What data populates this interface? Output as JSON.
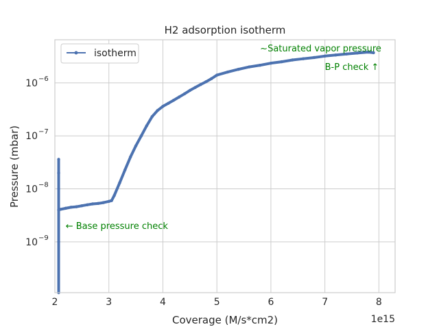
{
  "chart_data": {
    "type": "line",
    "title": "H2 adsorption isotherm",
    "xlabel": "Coverage (M/s*cm2)",
    "ylabel": "Pressure (mbar)",
    "x_offset_label": "1e15",
    "x_scale_factor": 1000000000000000.0,
    "xlim": [
      2000000000000000.0,
      8300000000000000.0
    ],
    "ylim": [
      1.1e-10,
      6.5e-06
    ],
    "yscale": "log",
    "grid": true,
    "legend_position": "upper left",
    "x_ticks": [
      {
        "value": 2000000000000000.0,
        "label": "2"
      },
      {
        "value": 3000000000000000.0,
        "label": "3"
      },
      {
        "value": 4000000000000000.0,
        "label": "4"
      },
      {
        "value": 5000000000000000.0,
        "label": "5"
      },
      {
        "value": 6000000000000000.0,
        "label": "6"
      },
      {
        "value": 7000000000000000.0,
        "label": "7"
      },
      {
        "value": 8000000000000000.0,
        "label": "8"
      }
    ],
    "y_ticks": [
      {
        "value": 1e-09,
        "base": "10",
        "exp": "−9"
      },
      {
        "value": 1e-08,
        "base": "10",
        "exp": "−8"
      },
      {
        "value": 1e-07,
        "base": "10",
        "exp": "−7"
      },
      {
        "value": 1e-06,
        "base": "10",
        "exp": "−6"
      }
    ],
    "series": [
      {
        "name": "isotherm",
        "color": "#4c72b0",
        "x": [
          2070000000000000.0,
          2070000000000000.0,
          2070000000000000.0,
          2070000000000000.0,
          2070000000000000.0,
          2070000000000000.0,
          2070000000000000.0,
          2070000000000000.0,
          2100000000000000.0,
          2200000000000000.0,
          2300000000000000.0,
          2400000000000000.0,
          2500000000000000.0,
          2600000000000000.0,
          2700000000000000.0,
          2800000000000000.0,
          2900000000000000.0,
          3000000000000000.0,
          3050000000000000.0,
          3100000000000000.0,
          3200000000000000.0,
          3300000000000000.0,
          3400000000000000.0,
          3500000000000000.0,
          3600000000000000.0,
          3700000000000000.0,
          3800000000000000.0,
          3900000000000000.0,
          4000000000000000.0,
          4100000000000000.0,
          4200000000000000.0,
          4300000000000000.0,
          4400000000000000.0,
          4500000000000000.0,
          4600000000000000.0,
          4700000000000000.0,
          4800000000000000.0,
          4900000000000000.0,
          5000000000000000.0,
          5200000000000000.0,
          5400000000000000.0,
          5600000000000000.0,
          5800000000000000.0,
          6000000000000000.0,
          6200000000000000.0,
          6400000000000000.0,
          6600000000000000.0,
          6800000000000000.0,
          7000000000000000.0,
          7200000000000000.0,
          7400000000000000.0,
          7600000000000000.0,
          7800000000000000.0,
          7900000000000000.0
        ],
        "y": [
          1.1e-10,
          1e-09,
          4e-09,
          1e-08,
          2e-08,
          3.6e-08,
          2e-08,
          4e-09,
          4.1e-09,
          4.3e-09,
          4.5e-09,
          4.6e-09,
          4.8e-09,
          5e-09,
          5.2e-09,
          5.3e-09,
          5.5e-09,
          5.8e-09,
          6e-09,
          7.5e-09,
          1.3e-08,
          2.3e-08,
          4e-08,
          6.5e-08,
          1e-07,
          1.55e-07,
          2.3e-07,
          3e-07,
          3.6e-07,
          4.1e-07,
          4.7e-07,
          5.4e-07,
          6.2e-07,
          7.2e-07,
          8.2e-07,
          9.3e-07,
          1.05e-06,
          1.2e-06,
          1.4e-06,
          1.6e-06,
          1.8e-06,
          2e-06,
          2.15e-06,
          2.35e-06,
          2.5e-06,
          2.7e-06,
          2.85e-06,
          3e-06,
          3.2e-06,
          3.35e-06,
          3.5e-06,
          3.65e-06,
          3.8e-06,
          3.7e-06
        ]
      }
    ],
    "annotations": [
      {
        "text": "~Saturated vapor pressure",
        "x": 5800000000000000.0,
        "y": 3.9e-06
      },
      {
        "text": "B-P check ↑",
        "x": 7000000000000000.0,
        "y": 1.75e-06
      },
      {
        "text": "← Base pressure check",
        "x": 2200000000000000.0,
        "y": 1.75e-09
      }
    ]
  },
  "colors": {
    "series": "#4c72b0",
    "annotation": "#008000",
    "grid": "#cccccc",
    "text": "#262626"
  }
}
